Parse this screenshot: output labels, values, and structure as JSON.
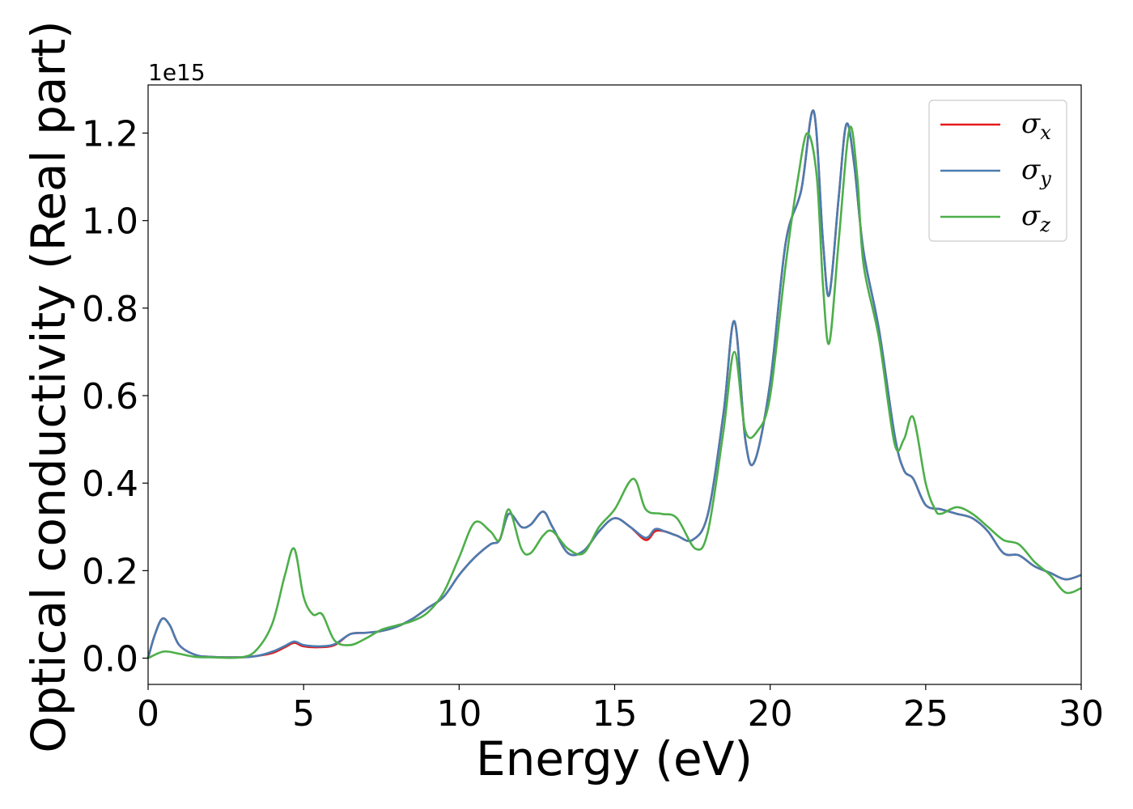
{
  "chart_data": {
    "type": "line",
    "xlabel": "Energy (eV)",
    "ylabel": "Optical conductivity (Real part)",
    "y_offset_label": "1e15",
    "xlim": [
      0,
      30
    ],
    "ylim": [
      -0.06,
      1.31
    ],
    "x_ticks": [
      0,
      5,
      10,
      15,
      20,
      25,
      30
    ],
    "x_tick_labels": [
      "0",
      "5",
      "10",
      "15",
      "20",
      "25",
      "30"
    ],
    "y_ticks": [
      0.0,
      0.2,
      0.4,
      0.6,
      0.8,
      1.0,
      1.2
    ],
    "y_tick_labels": [
      "0.0",
      "0.2",
      "0.4",
      "0.6",
      "0.8",
      "1.0",
      "1.2"
    ],
    "grid": false,
    "legend_position": "top-right",
    "series": [
      {
        "name": "σx",
        "symbol": "σ",
        "subscript": "x",
        "color": "#e41a1c",
        "points": [
          [
            0,
            0
          ],
          [
            0.2,
            0.05
          ],
          [
            0.45,
            0.09
          ],
          [
            0.7,
            0.075
          ],
          [
            1.0,
            0.03
          ],
          [
            1.5,
            0.008
          ],
          [
            2,
            0.003
          ],
          [
            3,
            0.002
          ],
          [
            3.5,
            0.005
          ],
          [
            4,
            0.012
          ],
          [
            4.4,
            0.025
          ],
          [
            4.7,
            0.035
          ],
          [
            5.0,
            0.027
          ],
          [
            5.5,
            0.025
          ],
          [
            6.0,
            0.03
          ],
          [
            6.5,
            0.055
          ],
          [
            7.0,
            0.058
          ],
          [
            7.5,
            0.062
          ],
          [
            8.0,
            0.072
          ],
          [
            8.5,
            0.09
          ],
          [
            9.0,
            0.115
          ],
          [
            9.5,
            0.14
          ],
          [
            10.0,
            0.19
          ],
          [
            10.5,
            0.23
          ],
          [
            11.0,
            0.26
          ],
          [
            11.3,
            0.27
          ],
          [
            11.6,
            0.33
          ],
          [
            12.0,
            0.3
          ],
          [
            12.3,
            0.305
          ],
          [
            12.7,
            0.335
          ],
          [
            13.0,
            0.3
          ],
          [
            13.5,
            0.24
          ],
          [
            14.0,
            0.245
          ],
          [
            14.5,
            0.29
          ],
          [
            15.0,
            0.32
          ],
          [
            15.5,
            0.3
          ],
          [
            16.0,
            0.27
          ],
          [
            16.3,
            0.29
          ],
          [
            16.6,
            0.29
          ],
          [
            17.0,
            0.28
          ],
          [
            17.5,
            0.27
          ],
          [
            18.0,
            0.33
          ],
          [
            18.5,
            0.56
          ],
          [
            18.85,
            0.77
          ],
          [
            19.2,
            0.5
          ],
          [
            19.5,
            0.45
          ],
          [
            20.0,
            0.63
          ],
          [
            20.5,
            0.95
          ],
          [
            21.0,
            1.07
          ],
          [
            21.4,
            1.25
          ],
          [
            21.7,
            0.95
          ],
          [
            21.9,
            0.83
          ],
          [
            22.2,
            1.05
          ],
          [
            22.45,
            1.22
          ],
          [
            22.7,
            1.13
          ],
          [
            23.0,
            0.93
          ],
          [
            23.5,
            0.75
          ],
          [
            24.0,
            0.51
          ],
          [
            24.3,
            0.43
          ],
          [
            24.6,
            0.41
          ],
          [
            25.0,
            0.35
          ],
          [
            25.5,
            0.34
          ],
          [
            26.0,
            0.33
          ],
          [
            26.5,
            0.32
          ],
          [
            27.0,
            0.29
          ],
          [
            27.5,
            0.24
          ],
          [
            28.0,
            0.235
          ],
          [
            28.5,
            0.21
          ],
          [
            29.0,
            0.195
          ],
          [
            29.5,
            0.18
          ],
          [
            30.0,
            0.19
          ]
        ]
      },
      {
        "name": "σy",
        "symbol": "σ",
        "subscript": "y",
        "color": "#4a7cb0",
        "points": [
          [
            0,
            0
          ],
          [
            0.2,
            0.05
          ],
          [
            0.45,
            0.09
          ],
          [
            0.7,
            0.075
          ],
          [
            1.0,
            0.03
          ],
          [
            1.5,
            0.008
          ],
          [
            2,
            0.003
          ],
          [
            3,
            0.002
          ],
          [
            3.5,
            0.005
          ],
          [
            4,
            0.015
          ],
          [
            4.4,
            0.028
          ],
          [
            4.7,
            0.038
          ],
          [
            5.0,
            0.03
          ],
          [
            5.5,
            0.027
          ],
          [
            6.0,
            0.032
          ],
          [
            6.5,
            0.055
          ],
          [
            7.0,
            0.058
          ],
          [
            7.5,
            0.062
          ],
          [
            8.0,
            0.072
          ],
          [
            8.5,
            0.09
          ],
          [
            9.0,
            0.115
          ],
          [
            9.5,
            0.14
          ],
          [
            10.0,
            0.19
          ],
          [
            10.5,
            0.23
          ],
          [
            11.0,
            0.26
          ],
          [
            11.3,
            0.27
          ],
          [
            11.6,
            0.33
          ],
          [
            12.0,
            0.3
          ],
          [
            12.3,
            0.305
          ],
          [
            12.7,
            0.335
          ],
          [
            13.0,
            0.3
          ],
          [
            13.5,
            0.24
          ],
          [
            14.0,
            0.245
          ],
          [
            14.5,
            0.29
          ],
          [
            15.0,
            0.32
          ],
          [
            15.5,
            0.3
          ],
          [
            16.0,
            0.275
          ],
          [
            16.3,
            0.295
          ],
          [
            16.6,
            0.29
          ],
          [
            17.0,
            0.28
          ],
          [
            17.5,
            0.27
          ],
          [
            18.0,
            0.33
          ],
          [
            18.5,
            0.56
          ],
          [
            18.85,
            0.77
          ],
          [
            19.2,
            0.5
          ],
          [
            19.5,
            0.45
          ],
          [
            20.0,
            0.63
          ],
          [
            20.5,
            0.95
          ],
          [
            21.0,
            1.07
          ],
          [
            21.4,
            1.25
          ],
          [
            21.7,
            0.95
          ],
          [
            21.9,
            0.83
          ],
          [
            22.2,
            1.05
          ],
          [
            22.45,
            1.22
          ],
          [
            22.7,
            1.13
          ],
          [
            23.0,
            0.93
          ],
          [
            23.5,
            0.75
          ],
          [
            24.0,
            0.51
          ],
          [
            24.3,
            0.43
          ],
          [
            24.6,
            0.41
          ],
          [
            25.0,
            0.35
          ],
          [
            25.5,
            0.34
          ],
          [
            26.0,
            0.33
          ],
          [
            26.5,
            0.32
          ],
          [
            27.0,
            0.29
          ],
          [
            27.5,
            0.24
          ],
          [
            28.0,
            0.235
          ],
          [
            28.5,
            0.21
          ],
          [
            29.0,
            0.195
          ],
          [
            29.5,
            0.18
          ],
          [
            30.0,
            0.19
          ]
        ]
      },
      {
        "name": "σz",
        "symbol": "σ",
        "subscript": "z",
        "color": "#4daf4a",
        "points": [
          [
            0,
            0
          ],
          [
            0.5,
            0.015
          ],
          [
            1.0,
            0.01
          ],
          [
            1.5,
            0.003
          ],
          [
            2,
            0.002
          ],
          [
            3,
            0.002
          ],
          [
            3.5,
            0.02
          ],
          [
            4.0,
            0.08
          ],
          [
            4.4,
            0.19
          ],
          [
            4.7,
            0.25
          ],
          [
            5.0,
            0.14
          ],
          [
            5.3,
            0.1
          ],
          [
            5.6,
            0.1
          ],
          [
            6.0,
            0.04
          ],
          [
            6.5,
            0.03
          ],
          [
            7.0,
            0.045
          ],
          [
            7.5,
            0.065
          ],
          [
            8.0,
            0.075
          ],
          [
            8.5,
            0.085
          ],
          [
            9.0,
            0.105
          ],
          [
            9.5,
            0.15
          ],
          [
            10.0,
            0.23
          ],
          [
            10.5,
            0.31
          ],
          [
            11.0,
            0.29
          ],
          [
            11.3,
            0.27
          ],
          [
            11.6,
            0.34
          ],
          [
            12.0,
            0.25
          ],
          [
            12.3,
            0.24
          ],
          [
            12.7,
            0.28
          ],
          [
            13.0,
            0.29
          ],
          [
            13.5,
            0.25
          ],
          [
            14.0,
            0.24
          ],
          [
            14.5,
            0.3
          ],
          [
            15.0,
            0.34
          ],
          [
            15.6,
            0.41
          ],
          [
            16.0,
            0.34
          ],
          [
            16.5,
            0.33
          ],
          [
            17.0,
            0.32
          ],
          [
            17.6,
            0.25
          ],
          [
            18.0,
            0.29
          ],
          [
            18.5,
            0.52
          ],
          [
            18.85,
            0.7
          ],
          [
            19.2,
            0.52
          ],
          [
            19.6,
            0.52
          ],
          [
            20.0,
            0.6
          ],
          [
            20.5,
            0.9
          ],
          [
            20.9,
            1.1
          ],
          [
            21.2,
            1.2
          ],
          [
            21.5,
            1.1
          ],
          [
            21.7,
            0.85
          ],
          [
            21.9,
            0.72
          ],
          [
            22.2,
            0.95
          ],
          [
            22.55,
            1.21
          ],
          [
            22.8,
            1.1
          ],
          [
            23.0,
            0.9
          ],
          [
            23.5,
            0.73
          ],
          [
            24.0,
            0.49
          ],
          [
            24.3,
            0.5
          ],
          [
            24.6,
            0.55
          ],
          [
            25.0,
            0.4
          ],
          [
            25.3,
            0.34
          ],
          [
            25.5,
            0.33
          ],
          [
            26.0,
            0.345
          ],
          [
            26.5,
            0.33
          ],
          [
            27.0,
            0.3
          ],
          [
            27.5,
            0.27
          ],
          [
            28.0,
            0.26
          ],
          [
            28.5,
            0.22
          ],
          [
            29.0,
            0.19
          ],
          [
            29.5,
            0.15
          ],
          [
            30.0,
            0.16
          ]
        ]
      }
    ]
  }
}
